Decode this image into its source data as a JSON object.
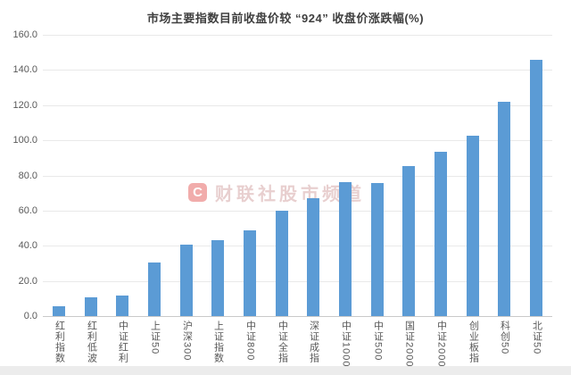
{
  "colors": {
    "background": "#ffffff",
    "bar": "#5B9BD5",
    "grid": "#e9e9e9",
    "axis": "#c9c9c9",
    "tick_label": "#595959",
    "title": "#3f3f3f",
    "watermark_red": "#e03b38",
    "watermark_text": "#c98f8f",
    "footer_strip": "#ececec"
  },
  "watermark": {
    "logo_letter": "C",
    "text": "财联社股市频道"
  },
  "chart_data": {
    "type": "bar",
    "title": "市场主要指数目前收盘价较 “924” 收盘价涨跌幅(%)",
    "categories": [
      "红利指数",
      "红利低波",
      "中证红利",
      "上证50",
      "沪深300",
      "上证指数",
      "中证800",
      "中证全指",
      "深证成指",
      "中证1000",
      "中证500",
      "国证2000",
      "中证2000",
      "创业板指",
      "科创50",
      "北证50"
    ],
    "values": [
      5.5,
      10.5,
      11.5,
      30.5,
      40.5,
      43.0,
      49.0,
      60.0,
      67.0,
      76.0,
      75.5,
      85.5,
      93.5,
      102.5,
      122.0,
      146.0
    ],
    "xlabel": "",
    "ylabel": "",
    "ylim": [
      0,
      160
    ],
    "ytick_step": 20,
    "ytick_labels": [
      "0.0",
      "20.0",
      "40.0",
      "60.0",
      "80.0",
      "100.0",
      "120.0",
      "140.0",
      "160.0"
    ],
    "grid": true,
    "legend": false
  }
}
